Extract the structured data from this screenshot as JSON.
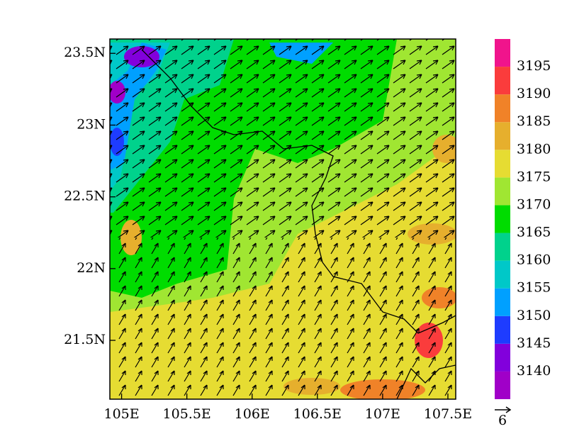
{
  "chart_data": {
    "type": "contour-map",
    "xlim": [
      104.91,
      107.56
    ],
    "ylim": [
      21.09,
      23.6
    ],
    "xticks": [
      {
        "value": 105,
        "label": "105E"
      },
      {
        "value": 105.5,
        "label": "105.5E"
      },
      {
        "value": 106,
        "label": "106E"
      },
      {
        "value": 106.5,
        "label": "106.5E"
      },
      {
        "value": 107,
        "label": "107E"
      },
      {
        "value": 107.5,
        "label": "107.5E"
      }
    ],
    "yticks": [
      {
        "value": 21.5,
        "label": "21.5N"
      },
      {
        "value": 22,
        "label": "22N"
      },
      {
        "value": 22.5,
        "label": "22.5N"
      },
      {
        "value": 23,
        "label": "23N"
      },
      {
        "value": 23.5,
        "label": "23.5N"
      }
    ],
    "colorbar": {
      "levels": [
        3140,
        3145,
        3150,
        3155,
        3160,
        3165,
        3170,
        3175,
        3180,
        3185,
        3190,
        3195
      ],
      "colors": [
        "#a000c8",
        "#8200dc",
        "#1e3cff",
        "#00a0ff",
        "#00c8c8",
        "#00d28c",
        "#00dc00",
        "#a0e632",
        "#e6dc32",
        "#e6af2d",
        "#f08228",
        "#fa3c3c",
        "#f0148c"
      ]
    },
    "vector_reference": 6
  }
}
